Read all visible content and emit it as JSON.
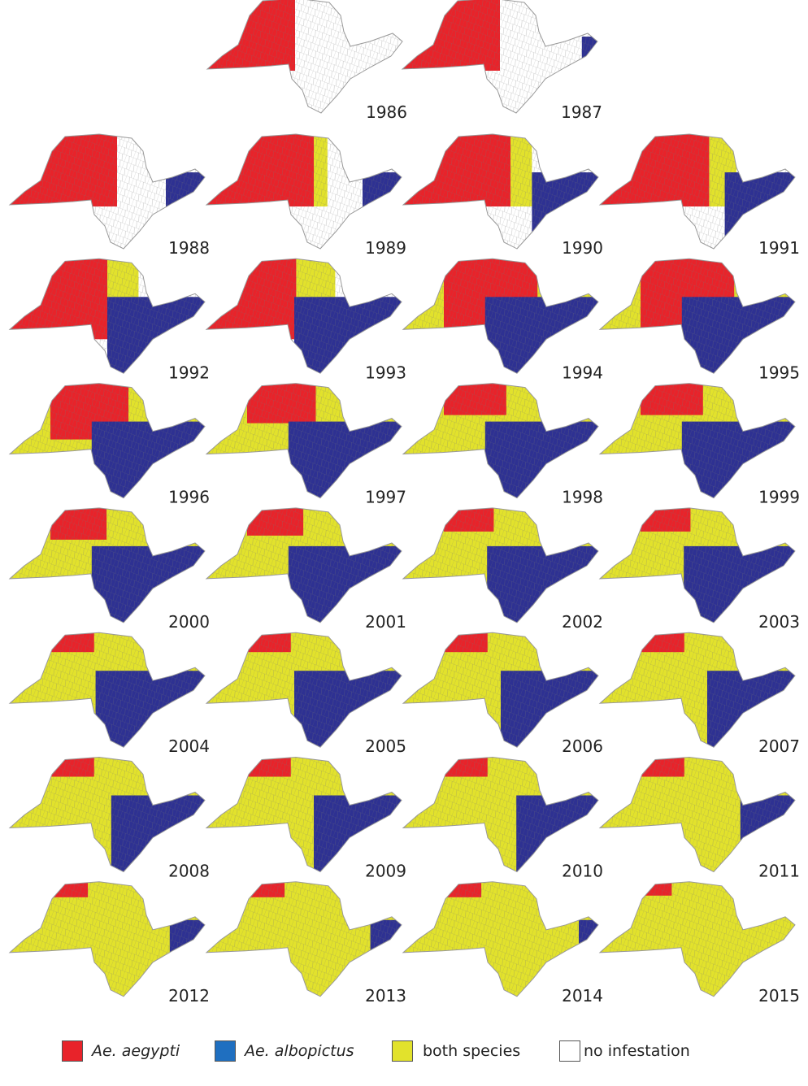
{
  "maps": [
    {
      "year": "1986"
    },
    {
      "year": "1987"
    },
    {
      "year": "1988"
    },
    {
      "year": "1989"
    },
    {
      "year": "1990"
    },
    {
      "year": "1991"
    },
    {
      "year": "1992"
    },
    {
      "year": "1993"
    },
    {
      "year": "1994"
    },
    {
      "year": "1995"
    },
    {
      "year": "1996"
    },
    {
      "year": "1997"
    },
    {
      "year": "1998"
    },
    {
      "year": "1999"
    },
    {
      "year": "2000"
    },
    {
      "year": "2001"
    },
    {
      "year": "2002"
    },
    {
      "year": "2003"
    },
    {
      "year": "2004"
    },
    {
      "year": "2005"
    },
    {
      "year": "2006"
    },
    {
      "year": "2007"
    },
    {
      "year": "2008"
    },
    {
      "year": "2009"
    },
    {
      "year": "2010"
    },
    {
      "year": "2011"
    },
    {
      "year": "2012"
    },
    {
      "year": "2013"
    },
    {
      "year": "2014"
    },
    {
      "year": "2015"
    }
  ],
  "legend": [
    {
      "label": "Ae. aegypti"
    },
    {
      "label": "Ae. albopictus"
    },
    {
      "label": "both species"
    },
    {
      "label": "no infestation"
    }
  ]
}
